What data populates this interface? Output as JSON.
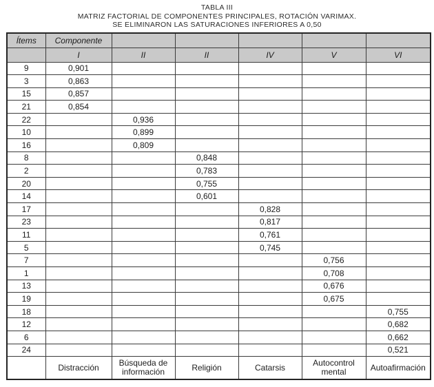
{
  "title": {
    "line1": "TABLA III",
    "line2": "MATRIZ FACTORIAL DE COMPONENTES PRINCIPALES, ROTACIÓN VARIMAX.",
    "line3": "SE ELIMINARON LAS SATURACIONES INFERIORES A 0,50"
  },
  "table": {
    "header_row1": [
      "Ítems",
      "Componente",
      "",
      "",
      "",
      "",
      ""
    ],
    "header_row2": [
      "",
      "I",
      "II",
      "II",
      "IV",
      "V",
      "VI"
    ],
    "rows": [
      {
        "item": "9",
        "values": [
          "0,901",
          "",
          "",
          "",
          "",
          ""
        ]
      },
      {
        "item": "3",
        "values": [
          "0,863",
          "",
          "",
          "",
          "",
          ""
        ]
      },
      {
        "item": "15",
        "values": [
          "0,857",
          "",
          "",
          "",
          "",
          ""
        ]
      },
      {
        "item": "21",
        "values": [
          "0,854",
          "",
          "",
          "",
          "",
          ""
        ]
      },
      {
        "item": "22",
        "values": [
          "",
          "0,936",
          "",
          "",
          "",
          ""
        ]
      },
      {
        "item": "10",
        "values": [
          "",
          "0,899",
          "",
          "",
          "",
          ""
        ]
      },
      {
        "item": "16",
        "values": [
          "",
          "0,809",
          "",
          "",
          "",
          ""
        ]
      },
      {
        "item": "8",
        "values": [
          "",
          "",
          "0,848",
          "",
          "",
          ""
        ]
      },
      {
        "item": "2",
        "values": [
          "",
          "",
          "0,783",
          "",
          "",
          ""
        ]
      },
      {
        "item": "20",
        "values": [
          "",
          "",
          "0,755",
          "",
          "",
          ""
        ]
      },
      {
        "item": "14",
        "values": [
          "",
          "",
          "0,601",
          "",
          "",
          ""
        ]
      },
      {
        "item": "17",
        "values": [
          "",
          "",
          "",
          "0,828",
          "",
          ""
        ]
      },
      {
        "item": "23",
        "values": [
          "",
          "",
          "",
          "0,817",
          "",
          ""
        ]
      },
      {
        "item": "11",
        "values": [
          "",
          "",
          "",
          "0,761",
          "",
          ""
        ]
      },
      {
        "item": "5",
        "values": [
          "",
          "",
          "",
          "0,745",
          "",
          ""
        ]
      },
      {
        "item": "7",
        "values": [
          "",
          "",
          "",
          "",
          "0,756",
          ""
        ]
      },
      {
        "item": "1",
        "values": [
          "",
          "",
          "",
          "",
          "0,708",
          ""
        ]
      },
      {
        "item": "13",
        "values": [
          "",
          "",
          "",
          "",
          "0,676",
          ""
        ]
      },
      {
        "item": "19",
        "values": [
          "",
          "",
          "",
          "",
          "0,675",
          ""
        ]
      },
      {
        "item": "18",
        "values": [
          "",
          "",
          "",
          "",
          "",
          "0,755"
        ]
      },
      {
        "item": "12",
        "values": [
          "",
          "",
          "",
          "",
          "",
          "0,682"
        ]
      },
      {
        "item": "6",
        "values": [
          "",
          "",
          "",
          "",
          "",
          "0,662"
        ]
      },
      {
        "item": "24",
        "values": [
          "",
          "",
          "",
          "",
          "",
          "0,521"
        ]
      }
    ],
    "footer": [
      "",
      "Distracción",
      "Búsqueda de información",
      "Religión",
      "Catarsis",
      "Autocontrol mental",
      "Autoafirmación"
    ]
  },
  "colors": {
    "header_bg": "#c9c9c9",
    "border": "#3a3a3a",
    "text": "#1c1c1c"
  }
}
